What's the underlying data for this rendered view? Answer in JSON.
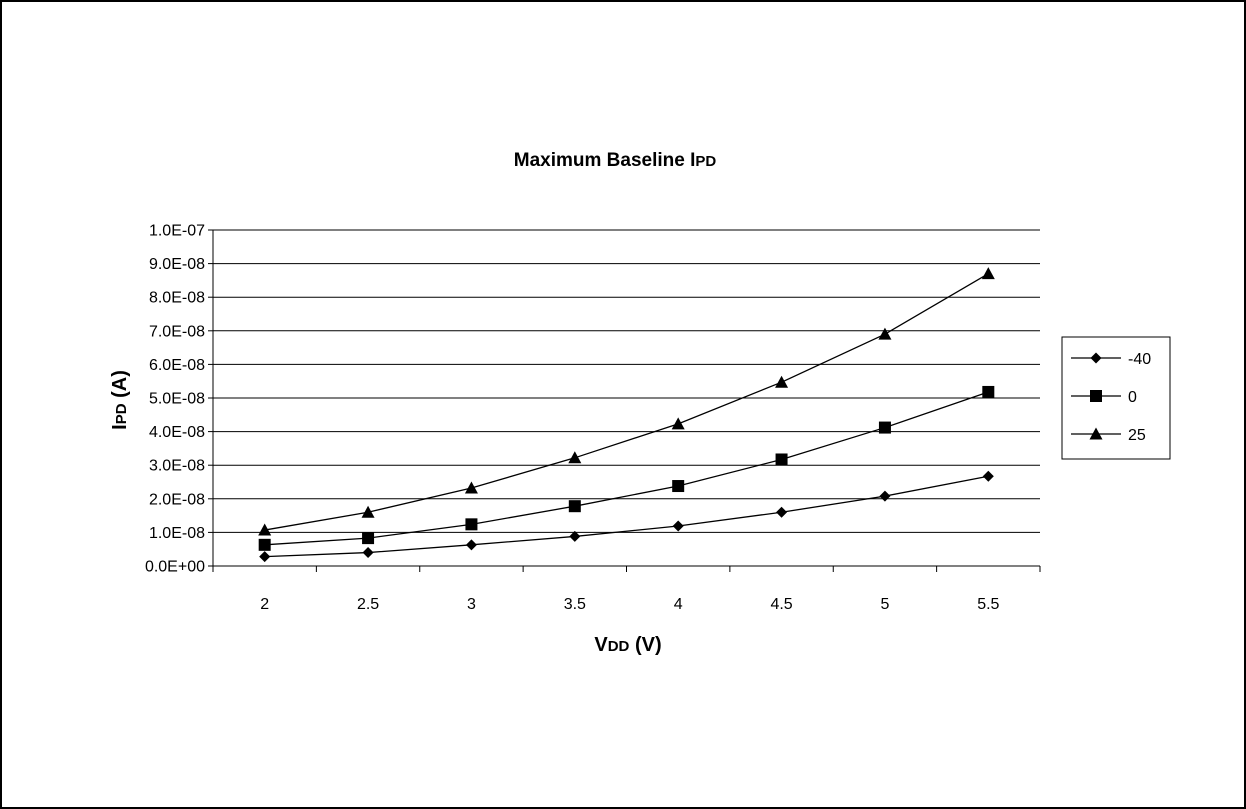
{
  "chart_data": {
    "type": "line",
    "title": "Maximum Baseline IPD",
    "title_parts": {
      "main": "Maximum Baseline I",
      "sub": "PD"
    },
    "xlabel": "VDD (V)",
    "xlabel_parts": {
      "main": "V",
      "sub": "DD",
      "rest": " (V)"
    },
    "ylabel": "IPD (A)",
    "ylabel_parts": {
      "main": "I",
      "sub": "PD",
      "rest": " (A)"
    },
    "categories": [
      "2",
      "2.5",
      "3",
      "3.5",
      "4",
      "4.5",
      "5",
      "5.5"
    ],
    "ylim": [
      0,
      1e-07
    ],
    "ytick_labels": [
      "0.0E+00",
      "1.0E-08",
      "2.0E-08",
      "3.0E-08",
      "4.0E-08",
      "5.0E-08",
      "6.0E-08",
      "7.0E-08",
      "8.0E-08",
      "9.0E-08",
      "1.0E-07"
    ],
    "grid": "horizontal",
    "legend_position": "right",
    "series": [
      {
        "name": "-40",
        "marker": "diamond",
        "values": [
          2.8e-09,
          4e-09,
          6.3e-09,
          8.8e-09,
          1.19e-08,
          1.6e-08,
          2.08e-08,
          2.67e-08
        ]
      },
      {
        "name": "0",
        "marker": "square",
        "values": [
          6.3e-09,
          8.3e-09,
          1.24e-08,
          1.78e-08,
          2.38e-08,
          3.17e-08,
          4.12e-08,
          5.18e-08
        ]
      },
      {
        "name": "25",
        "marker": "triangle",
        "values": [
          1.07e-08,
          1.6e-08,
          2.32e-08,
          3.22e-08,
          4.23e-08,
          5.47e-08,
          6.9e-08,
          8.7e-08
        ]
      }
    ]
  }
}
